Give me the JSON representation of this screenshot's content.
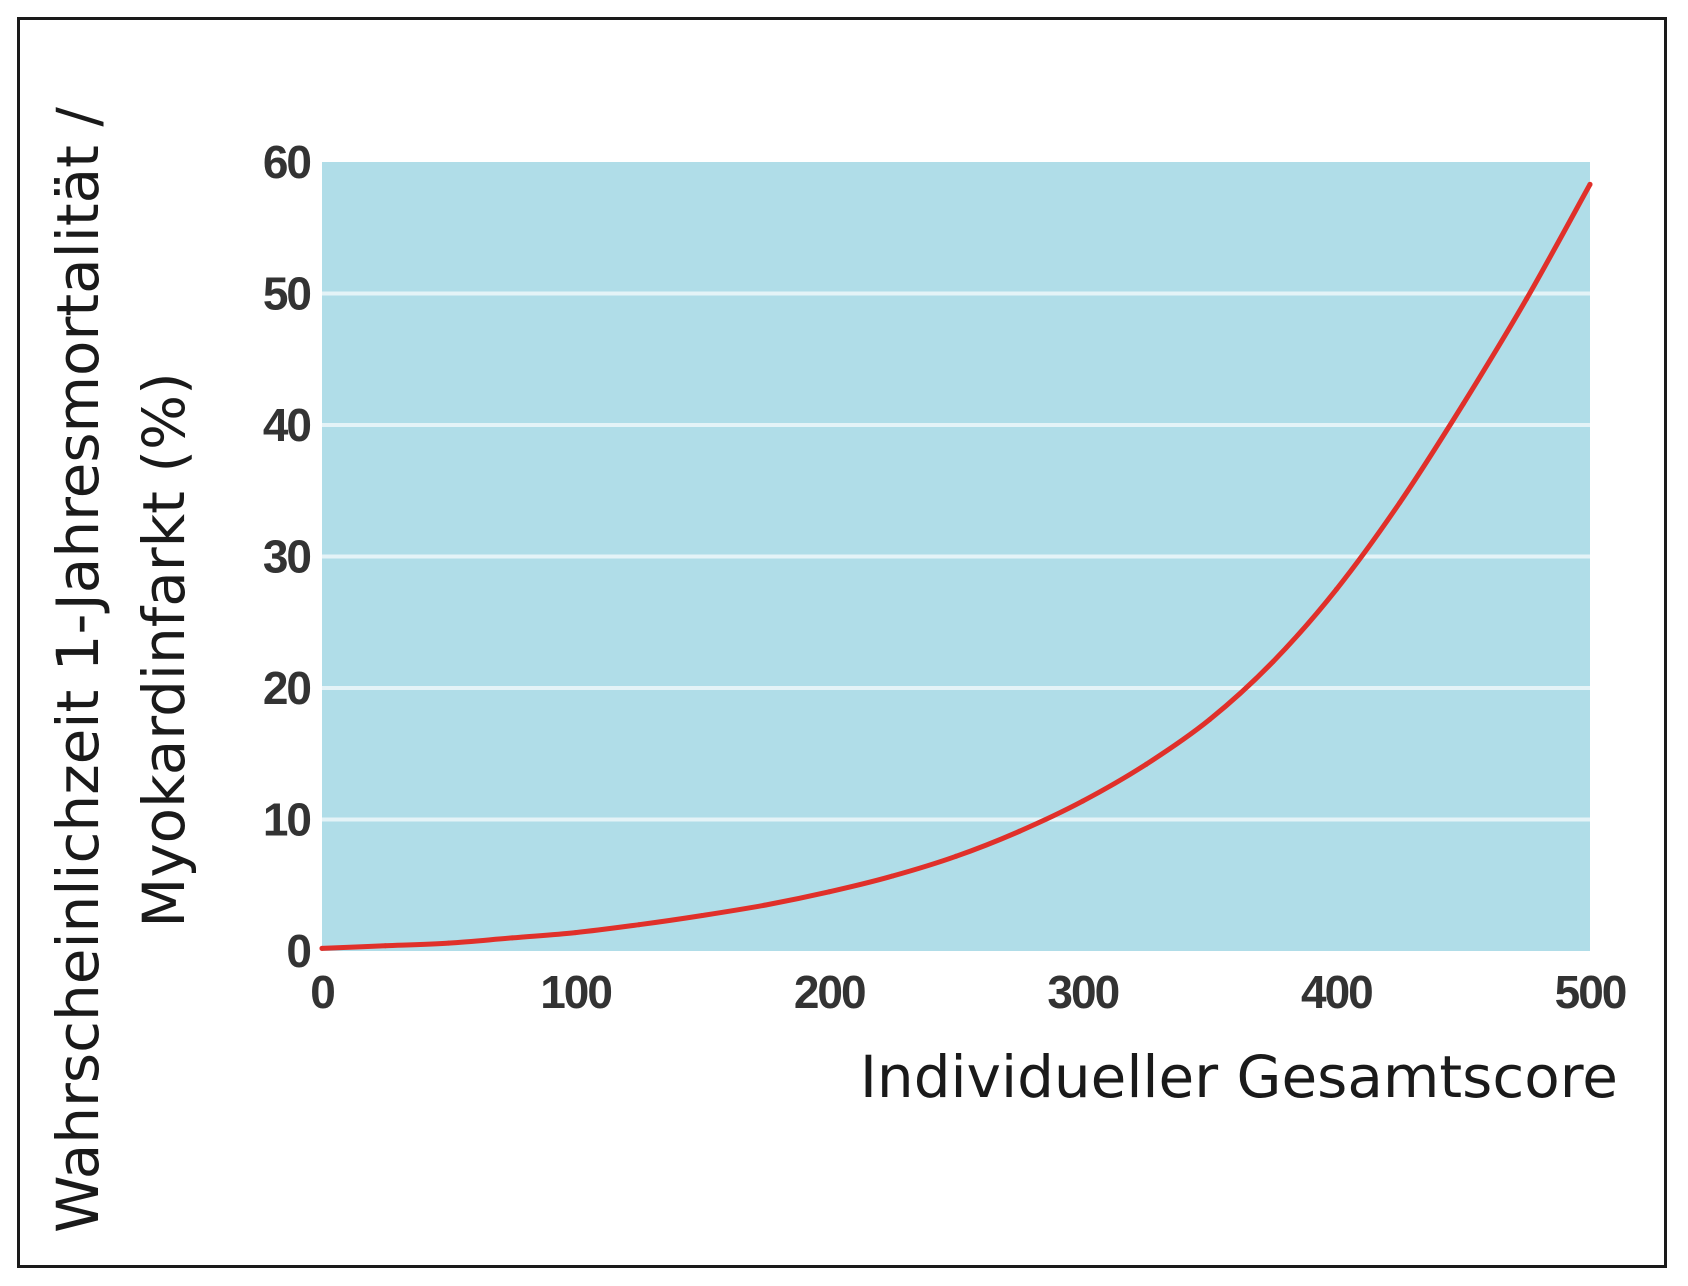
{
  "chart_data": {
    "type": "line",
    "title": "",
    "xlabel": "Individueller Gesamtscore",
    "ylabel_lines": [
      "Wahrscheinlichzeit 1-Jahresmortalität /",
      "Myokardinfarkt (%)"
    ],
    "xlim": [
      0,
      500
    ],
    "ylim": [
      0,
      60
    ],
    "x_ticks": [
      0,
      100,
      200,
      300,
      400,
      500
    ],
    "y_ticks": [
      0,
      10,
      20,
      30,
      40,
      50,
      60
    ],
    "grid": "horizontal",
    "colors": {
      "plot_background": "#b0dde8",
      "gridline": "#e4f3f7",
      "line": "#e0302a"
    },
    "series": [
      {
        "x": [
          0,
          25,
          50,
          75,
          100,
          125,
          150,
          175,
          200,
          225,
          250,
          275,
          300,
          325,
          350,
          375,
          400,
          425,
          450,
          475,
          500
        ],
        "y": [
          0.2,
          0.4,
          0.6,
          1.0,
          1.4,
          2.0,
          2.7,
          3.5,
          4.5,
          5.7,
          7.2,
          9.1,
          11.4,
          14.2,
          17.6,
          22.0,
          27.5,
          34.1,
          41.6,
          49.6,
          58.3
        ]
      }
    ]
  }
}
